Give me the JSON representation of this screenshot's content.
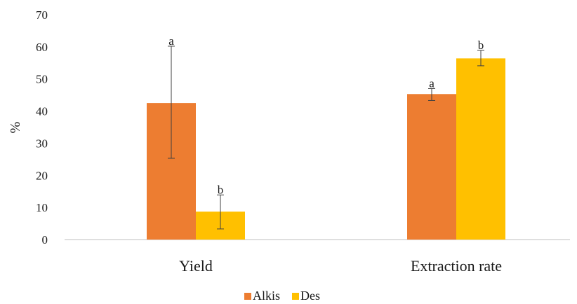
{
  "chart_data": {
    "type": "bar",
    "title": "",
    "xlabel": "",
    "ylabel": "%",
    "ylim": [
      0,
      70
    ],
    "yticks": [
      0,
      10,
      20,
      30,
      40,
      50,
      60,
      70
    ],
    "grid": false,
    "legend_position": "bottom",
    "categories": [
      "Yield",
      "Extraction rate"
    ],
    "series": [
      {
        "name": "Alkis",
        "color": "#ED7D31",
        "values": [
          42.5,
          45.3
        ],
        "error_low": [
          25.3,
          43.3
        ],
        "error_high": [
          60.2,
          47.0
        ],
        "significance": [
          "a",
          "a"
        ]
      },
      {
        "name": "Des",
        "color": "#FFC000",
        "values": [
          8.7,
          56.4
        ],
        "error_low": [
          3.3,
          54.1
        ],
        "error_high": [
          13.9,
          58.9
        ],
        "significance": [
          "b",
          "b"
        ]
      }
    ]
  }
}
